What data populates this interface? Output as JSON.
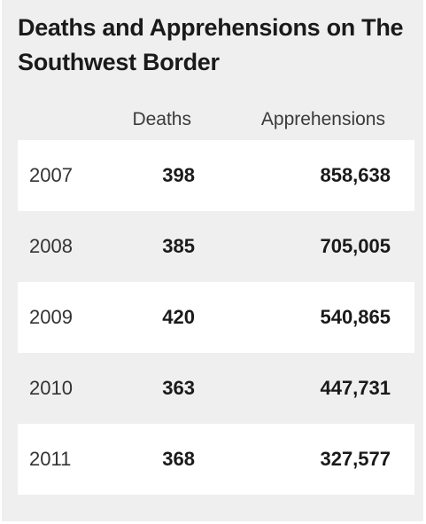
{
  "chart_data": {
    "type": "table",
    "title": "Deaths and Apprehensions on The Southwest Border",
    "columns": [
      "",
      "Deaths",
      "Apprehensions"
    ],
    "rows": [
      {
        "year": "2007",
        "deaths": "398",
        "apprehensions": "858,638"
      },
      {
        "year": "2008",
        "deaths": "385",
        "apprehensions": "705,005"
      },
      {
        "year": "2009",
        "deaths": "420",
        "apprehensions": "540,865"
      },
      {
        "year": "2010",
        "deaths": "363",
        "apprehensions": "447,731"
      },
      {
        "year": "2011",
        "deaths": "368",
        "apprehensions": "327,577"
      }
    ]
  },
  "colors": {
    "panel_background": "#efefef",
    "stripe_background": "#ffffff",
    "text": "#1a1a1a"
  }
}
